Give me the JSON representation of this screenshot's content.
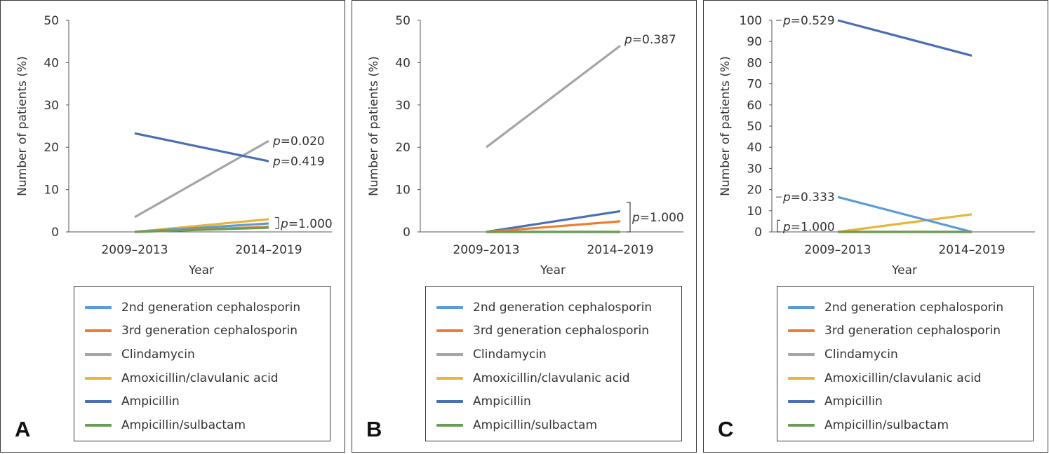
{
  "chart_data": [
    {
      "type": "line",
      "panel": "A",
      "categories": [
        "2009–2013",
        "2014–2019"
      ],
      "xlabel": "Year",
      "ylabel": "Number of patients (%)",
      "ylim": [
        0,
        50
      ],
      "yticks": [
        0,
        10,
        20,
        30,
        40,
        50
      ],
      "series": [
        {
          "name": "2nd generation cephalosporin",
          "values": [
            0,
            2.0
          ]
        },
        {
          "name": "3rd generation cephalosporin",
          "values": [
            0,
            1.2
          ]
        },
        {
          "name": "Clindamycin",
          "values": [
            3.5,
            21.5
          ]
        },
        {
          "name": "Amoxicillin/clavulanic acid",
          "values": [
            0,
            3.0
          ]
        },
        {
          "name": "Ampicillin",
          "values": [
            23.3,
            16.7
          ]
        },
        {
          "name": "Ampicillin/sulbactam",
          "values": [
            0,
            1.0
          ]
        }
      ],
      "annotations": [
        {
          "text": "p=0.020",
          "y": 21.5,
          "side": "right"
        },
        {
          "text": "p=0.419",
          "y": 16.7,
          "side": "right"
        },
        {
          "text": "p=1.000",
          "y": 2.0,
          "side": "right",
          "bracket": [
            0.8,
            3.4
          ]
        }
      ]
    },
    {
      "type": "line",
      "panel": "B",
      "categories": [
        "2009–2013",
        "2014–2019"
      ],
      "xlabel": "Year",
      "ylabel": "Number of patients (%)",
      "ylim": [
        0,
        50
      ],
      "yticks": [
        0,
        10,
        20,
        30,
        40,
        50
      ],
      "series": [
        {
          "name": "2nd generation cephalosporin",
          "values": [
            0,
            0
          ]
        },
        {
          "name": "3rd generation cephalosporin",
          "values": [
            0,
            2.5
          ]
        },
        {
          "name": "Clindamycin",
          "values": [
            20.0,
            44.0
          ]
        },
        {
          "name": "Amoxicillin/clavulanic acid",
          "values": [
            0,
            0
          ]
        },
        {
          "name": "Ampicillin",
          "values": [
            0,
            4.9
          ]
        },
        {
          "name": "Ampicillin/sulbactam",
          "values": [
            0,
            0
          ]
        }
      ],
      "annotations": [
        {
          "text": "p=0.387",
          "y": 45.5,
          "side": "right"
        },
        {
          "text": "p=1.000",
          "y": 3.5,
          "side": "right",
          "bracket": [
            0,
            7.0
          ]
        }
      ]
    },
    {
      "type": "line",
      "panel": "C",
      "categories": [
        "2009–2013",
        "2014–2019"
      ],
      "xlabel": "Year",
      "ylabel": "Number of patients (%)",
      "ylim": [
        0,
        100
      ],
      "yticks": [
        0,
        10,
        20,
        30,
        40,
        50,
        60,
        70,
        80,
        90,
        100
      ],
      "series": [
        {
          "name": "2nd generation cephalosporin",
          "values": [
            16.5,
            0
          ]
        },
        {
          "name": "3rd generation cephalosporin",
          "values": [
            0,
            0
          ]
        },
        {
          "name": "Clindamycin",
          "values": [
            0,
            0
          ]
        },
        {
          "name": "Amoxicillin/clavulanic acid",
          "values": [
            0,
            8.3
          ]
        },
        {
          "name": "Ampicillin",
          "values": [
            100,
            83.3
          ]
        },
        {
          "name": "Ampicillin/sulbactam",
          "values": [
            0,
            0
          ]
        }
      ],
      "annotations": [
        {
          "text": "p=0.529",
          "y": 100,
          "side": "left"
        },
        {
          "text": "p=0.333",
          "y": 16.5,
          "side": "left"
        },
        {
          "text": "p=1.000",
          "y": 2.5,
          "side": "left",
          "bracket": [
            0,
            5.5
          ]
        }
      ]
    }
  ],
  "colors": {
    "2nd generation cephalosporin": "#5b9bd5",
    "3rd generation cephalosporin": "#ed7d31",
    "Clindamycin": "#a5a5a5",
    "Amoxicillin/clavulanic acid": "#e6b53a",
    "Ampicillin": "#4a6fb5",
    "Ampicillin/sulbactam": "#6a9e58"
  },
  "legend": [
    {
      "label": "2nd generation cephalosporin",
      "color": "#5b9bd5"
    },
    {
      "label": "3rd generation cephalosporin",
      "color": "#ed7d31"
    },
    {
      "label": "Clindamycin",
      "color": "#a5a5a5"
    },
    {
      "label": "Amoxicillin/clavulanic acid",
      "color": "#e6b53a"
    },
    {
      "label": "Ampicillin",
      "color": "#4a6fb5"
    },
    {
      "label": "Ampicillin/sulbactam",
      "color": "#6a9e58"
    }
  ],
  "panels": [
    {
      "letter": "A",
      "xlabel": "Year",
      "ylabel": "Number of patients (%)"
    },
    {
      "letter": "B",
      "xlabel": "Year",
      "ylabel": "Number of patients (%)"
    },
    {
      "letter": "C",
      "xlabel": "Year",
      "ylabel": "Number of patients (%)"
    }
  ]
}
